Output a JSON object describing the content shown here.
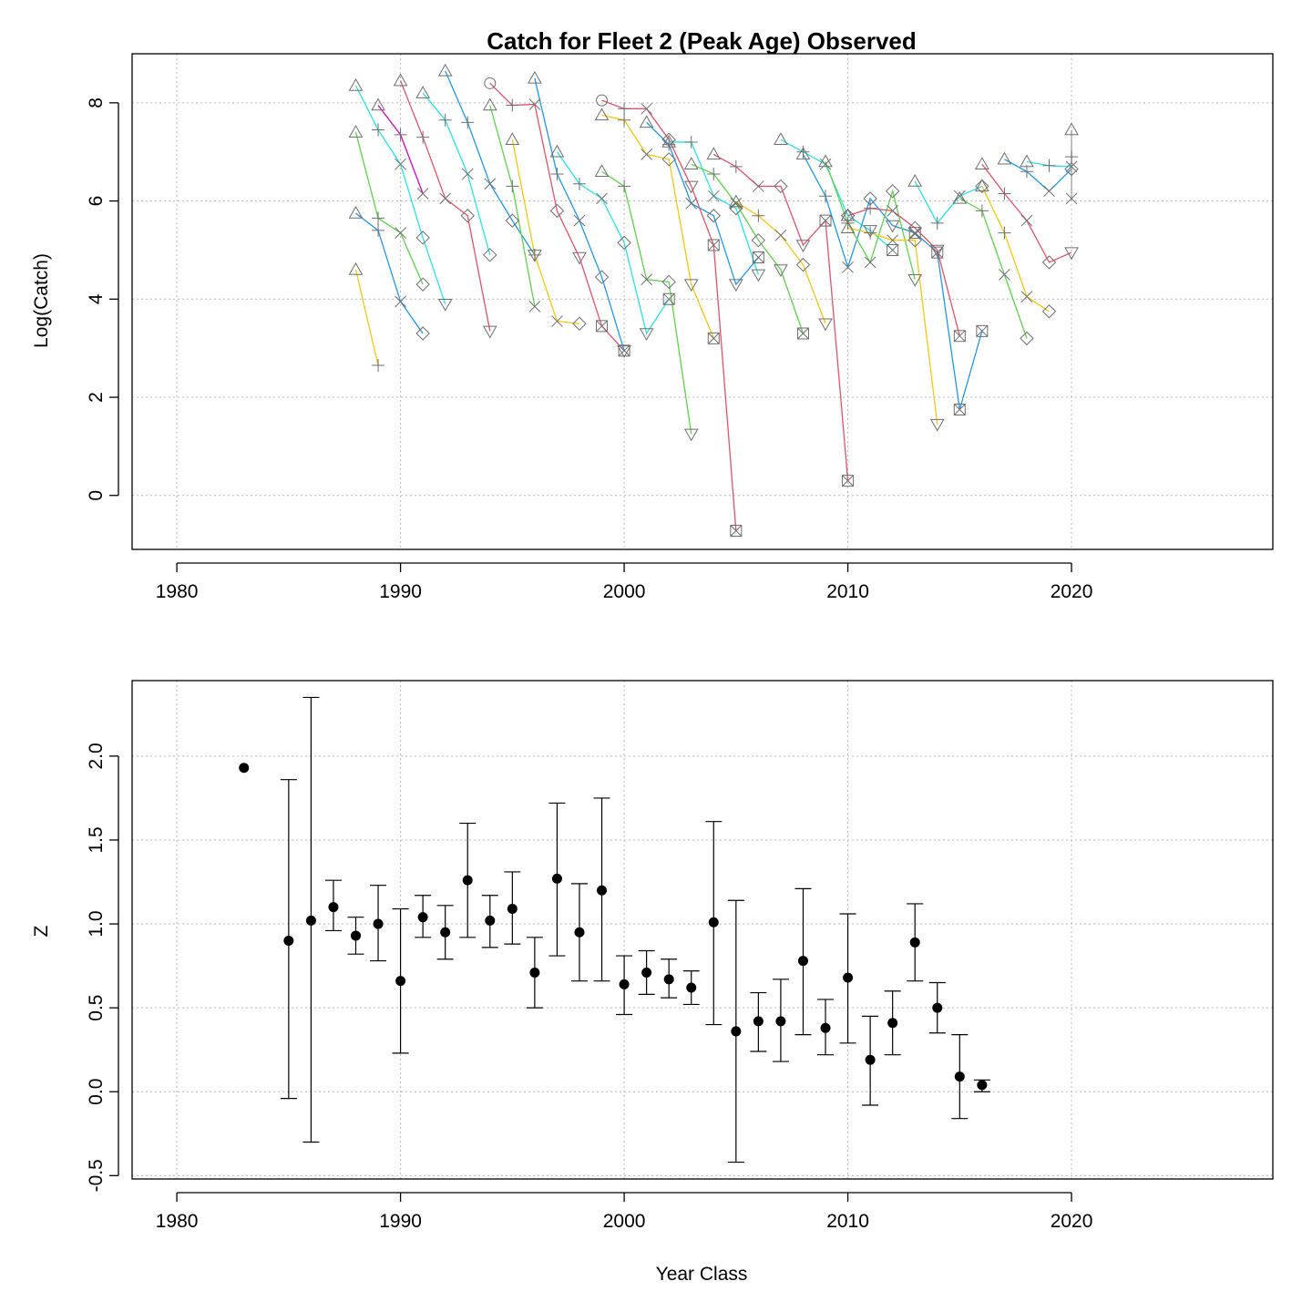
{
  "chart_data": [
    {
      "type": "line",
      "title": "Catch for Fleet 2 (Peak Age) Observed",
      "xlabel": "",
      "ylabel": "Log(Catch)",
      "xlim": [
        1978,
        2029
      ],
      "ylim": [
        -1.1,
        9.0
      ],
      "xticks": [
        1980,
        1990,
        2000,
        2010,
        2020
      ],
      "yticks": [
        0,
        2,
        4,
        6,
        8
      ],
      "grid": true,
      "age_markers": [
        "triangle",
        "plus",
        "x",
        "diamond",
        "triangle-down",
        "boxed-x"
      ],
      "series": [
        {
          "color": "#DF536B",
          "values": [
            [
              1994,
              8.4
            ],
            [
              1995,
              7.95
            ],
            [
              1996,
              7.97
            ],
            [
              1997,
              5.8
            ],
            [
              1998,
              4.85
            ],
            [
              1999,
              3.45
            ],
            [
              2000,
              2.95
            ]
          ]
        },
        {
          "color": "#DF536B",
          "values": [
            [
              1999,
              8.05
            ],
            [
              2000,
              7.88
            ],
            [
              2001,
              7.88
            ],
            [
              2002,
              7.25
            ],
            [
              2003,
              6.3
            ],
            [
              2004,
              5.1
            ],
            [
              2005,
              -0.72
            ]
          ]
        },
        {
          "color": "#28E2E5",
          "values": [
            [
              1988,
              8.35
            ],
            [
              1989,
              7.45
            ],
            [
              1990,
              6.75
            ],
            [
              1991,
              5.25
            ],
            [
              1992,
              3.9
            ]
          ]
        },
        {
          "color": "#61D04F",
          "values": [
            [
              1988,
              7.4
            ],
            [
              1989,
              5.65
            ],
            [
              1990,
              5.35
            ],
            [
              1991,
              4.3
            ]
          ]
        },
        {
          "color": "#2297E6",
          "values": [
            [
              1988,
              5.75
            ],
            [
              1989,
              5.4
            ],
            [
              1990,
              3.95
            ],
            [
              1991,
              3.3
            ]
          ]
        },
        {
          "color": "#F5C710",
          "values": [
            [
              1988,
              4.6
            ],
            [
              1989,
              2.65
            ]
          ]
        },
        {
          "color": "#DF536B",
          "values": [
            [
              1990,
              8.45
            ],
            [
              1991,
              7.3
            ],
            [
              1992,
              6.05
            ],
            [
              1993,
              5.7
            ],
            [
              1994,
              3.35
            ]
          ]
        },
        {
          "color": "#2297E6",
          "values": [
            [
              1992,
              8.65
            ],
            [
              1993,
              7.6
            ],
            [
              1994,
              6.35
            ],
            [
              1995,
              5.6
            ],
            [
              1996,
              4.9
            ]
          ]
        },
        {
          "color": "#28E2E5",
          "values": [
            [
              1991,
              8.2
            ],
            [
              1992,
              7.65
            ],
            [
              1993,
              6.55
            ],
            [
              1994,
              4.9
            ]
          ]
        },
        {
          "color": "#61D04F",
          "values": [
            [
              1994,
              7.95
            ],
            [
              1995,
              6.3
            ],
            [
              1996,
              3.85
            ]
          ]
        },
        {
          "color": "#CD0BBC",
          "values": [
            [
              1989,
              7.95
            ],
            [
              1990,
              7.35
            ],
            [
              1991,
              6.15
            ]
          ]
        },
        {
          "color": "#2297E6",
          "values": [
            [
              1996,
              8.5
            ],
            [
              1997,
              6.55
            ],
            [
              1998,
              5.6
            ],
            [
              1999,
              4.45
            ],
            [
              2000,
              2.95
            ]
          ]
        },
        {
          "color": "#28E2E5",
          "values": [
            [
              1997,
              7.0
            ],
            [
              1998,
              6.35
            ],
            [
              1999,
              6.05
            ],
            [
              2000,
              5.15
            ],
            [
              2001,
              3.3
            ],
            [
              2002,
              4.0
            ]
          ]
        },
        {
          "color": "#61D04F",
          "values": [
            [
              1999,
              6.6
            ],
            [
              2000,
              6.3
            ],
            [
              2001,
              4.4
            ],
            [
              2002,
              4.35
            ],
            [
              2003,
              1.25
            ]
          ]
        },
        {
          "color": "#F5C710",
          "values": [
            [
              1995,
              7.25
            ],
            [
              1996,
              4.9
            ],
            [
              1997,
              3.55
            ],
            [
              1998,
              3.5
            ]
          ]
        },
        {
          "color": "#F5C710",
          "values": [
            [
              1999,
              7.75
            ],
            [
              2000,
              7.65
            ],
            [
              2001,
              6.95
            ],
            [
              2002,
              6.85
            ],
            [
              2003,
              4.3
            ],
            [
              2004,
              3.2
            ]
          ]
        },
        {
          "color": "#2297E6",
          "values": [
            [
              2001,
              7.6
            ],
            [
              2002,
              7.15
            ],
            [
              2003,
              5.95
            ],
            [
              2004,
              5.7
            ],
            [
              2005,
              4.3
            ],
            [
              2006,
              4.85
            ]
          ]
        },
        {
          "color": "#28E2E5",
          "values": [
            [
              2002,
              7.2
            ],
            [
              2003,
              7.2
            ],
            [
              2004,
              6.1
            ],
            [
              2005,
              5.85
            ],
            [
              2006,
              4.5
            ]
          ]
        },
        {
          "color": "#61D04F",
          "values": [
            [
              2003,
              6.75
            ],
            [
              2004,
              6.55
            ],
            [
              2005,
              5.95
            ],
            [
              2006,
              5.2
            ],
            [
              2007,
              4.6
            ],
            [
              2008,
              3.3
            ]
          ]
        },
        {
          "color": "#DF536B",
          "values": [
            [
              2004,
              6.95
            ],
            [
              2005,
              6.7
            ],
            [
              2006,
              6.3
            ],
            [
              2007,
              6.3
            ],
            [
              2008,
              5.1
            ],
            [
              2009,
              5.6
            ],
            [
              2010,
              0.3
            ]
          ]
        },
        {
          "color": "#F5C710",
          "values": [
            [
              2005,
              5.98
            ],
            [
              2006,
              5.7
            ],
            [
              2007,
              5.3
            ],
            [
              2008,
              4.7
            ],
            [
              2009,
              3.5
            ]
          ]
        },
        {
          "color": "#28E2E5",
          "values": [
            [
              2007,
              7.25
            ],
            [
              2008,
              7.0
            ],
            [
              2009,
              6.75
            ],
            [
              2010,
              5.7
            ],
            [
              2011,
              5.4
            ],
            [
              2012,
              5.0
            ]
          ]
        },
        {
          "color": "#2297E6",
          "values": [
            [
              2008,
              6.95
            ],
            [
              2009,
              6.1
            ],
            [
              2010,
              4.65
            ],
            [
              2011,
              6.05
            ],
            [
              2012,
              5.5
            ],
            [
              2013,
              5.35
            ],
            [
              2014,
              4.95
            ],
            [
              2015,
              1.75
            ],
            [
              2016,
              3.35
            ]
          ]
        },
        {
          "color": "#61D04F",
          "values": [
            [
              2009,
              6.8
            ],
            [
              2010,
              5.55
            ],
            [
              2011,
              4.75
            ],
            [
              2012,
              6.2
            ],
            [
              2013,
              4.4
            ]
          ]
        },
        {
          "color": "#DF536B",
          "values": [
            [
              2010,
              5.7
            ],
            [
              2011,
              5.85
            ],
            [
              2012,
              5.8
            ],
            [
              2013,
              5.45
            ],
            [
              2014,
              5.0
            ],
            [
              2015,
              3.25
            ]
          ]
        },
        {
          "color": "#F5C710",
          "values": [
            [
              2010,
              5.45
            ],
            [
              2011,
              5.35
            ],
            [
              2012,
              5.2
            ],
            [
              2013,
              5.2
            ],
            [
              2014,
              1.45
            ]
          ]
        },
        {
          "color": "#28E2E5",
          "values": [
            [
              2013,
              6.4
            ],
            [
              2014,
              5.55
            ],
            [
              2015,
              6.1
            ],
            [
              2016,
              6.3
            ]
          ]
        },
        {
          "color": "#61D04F",
          "values": [
            [
              2015,
              6.05
            ],
            [
              2016,
              5.8
            ],
            [
              2017,
              4.5
            ],
            [
              2018,
              3.2
            ]
          ]
        },
        {
          "color": "#DF536B",
          "values": [
            [
              2016,
              6.75
            ],
            [
              2017,
              6.15
            ],
            [
              2018,
              5.6
            ],
            [
              2019,
              4.75
            ],
            [
              2020,
              4.95
            ]
          ]
        },
        {
          "color": "#F5C710",
          "values": [
            [
              2016,
              6.3
            ],
            [
              2017,
              5.35
            ],
            [
              2018,
              4.05
            ],
            [
              2019,
              3.75
            ]
          ]
        },
        {
          "color": "#2297E6",
          "values": [
            [
              2017,
              6.85
            ],
            [
              2018,
              6.6
            ],
            [
              2019,
              6.2
            ],
            [
              2020,
              6.65
            ]
          ]
        },
        {
          "color": "#28E2E5",
          "values": [
            [
              2018,
              6.8
            ],
            [
              2019,
              6.72
            ],
            [
              2020,
              6.7
            ]
          ]
        },
        {
          "color": "#9E9E9E",
          "values": [
            [
              2020,
              7.45
            ],
            [
              2020,
              6.9
            ],
            [
              2020,
              6.05
            ]
          ]
        }
      ]
    },
    {
      "type": "scatter",
      "title": "",
      "xlabel": "Year Class",
      "ylabel": "Z",
      "xlim": [
        1978,
        2029
      ],
      "ylim": [
        -0.52,
        2.45
      ],
      "xticks": [
        1980,
        1990,
        2000,
        2010,
        2020
      ],
      "yticks": [
        -0.5,
        0.0,
        0.5,
        1.0,
        1.5,
        2.0
      ],
      "ytick_labels": [
        "-0.5",
        "0.0",
        "0.5",
        "1.0",
        "1.5",
        "2.0"
      ],
      "grid": true,
      "error_bars": true,
      "points": [
        {
          "x": 1983,
          "y": 1.93
        },
        {
          "x": 1985,
          "y": 0.9,
          "lo": -0.04,
          "hi": 1.86
        },
        {
          "x": 1986,
          "y": 1.02,
          "lo": -0.3,
          "hi": 2.35
        },
        {
          "x": 1987,
          "y": 1.1,
          "lo": 0.96,
          "hi": 1.26
        },
        {
          "x": 1988,
          "y": 0.93,
          "lo": 0.82,
          "hi": 1.04
        },
        {
          "x": 1989,
          "y": 1.0,
          "lo": 0.78,
          "hi": 1.23
        },
        {
          "x": 1990,
          "y": 0.66,
          "lo": 0.23,
          "hi": 1.09
        },
        {
          "x": 1991,
          "y": 1.04,
          "lo": 0.92,
          "hi": 1.17
        },
        {
          "x": 1992,
          "y": 0.95,
          "lo": 0.79,
          "hi": 1.11
        },
        {
          "x": 1993,
          "y": 1.26,
          "lo": 0.92,
          "hi": 1.6
        },
        {
          "x": 1994,
          "y": 1.02,
          "lo": 0.86,
          "hi": 1.17
        },
        {
          "x": 1995,
          "y": 1.09,
          "lo": 0.88,
          "hi": 1.31
        },
        {
          "x": 1996,
          "y": 0.71,
          "lo": 0.5,
          "hi": 0.92
        },
        {
          "x": 1997,
          "y": 1.27,
          "lo": 0.81,
          "hi": 1.72
        },
        {
          "x": 1998,
          "y": 0.95,
          "lo": 0.66,
          "hi": 1.24
        },
        {
          "x": 1999,
          "y": 1.2,
          "lo": 0.66,
          "hi": 1.75
        },
        {
          "x": 2000,
          "y": 0.64,
          "lo": 0.46,
          "hi": 0.81
        },
        {
          "x": 2001,
          "y": 0.71,
          "lo": 0.58,
          "hi": 0.84
        },
        {
          "x": 2002,
          "y": 0.67,
          "lo": 0.56,
          "hi": 0.79
        },
        {
          "x": 2003,
          "y": 0.62,
          "lo": 0.52,
          "hi": 0.72
        },
        {
          "x": 2004,
          "y": 1.01,
          "lo": 0.4,
          "hi": 1.61
        },
        {
          "x": 2005,
          "y": 0.36,
          "lo": -0.42,
          "hi": 1.14
        },
        {
          "x": 2006,
          "y": 0.42,
          "lo": 0.24,
          "hi": 0.59
        },
        {
          "x": 2007,
          "y": 0.42,
          "lo": 0.18,
          "hi": 0.67
        },
        {
          "x": 2008,
          "y": 0.78,
          "lo": 0.34,
          "hi": 1.21
        },
        {
          "x": 2009,
          "y": 0.38,
          "lo": 0.22,
          "hi": 0.55
        },
        {
          "x": 2010,
          "y": 0.68,
          "lo": 0.29,
          "hi": 1.06
        },
        {
          "x": 2011,
          "y": 0.19,
          "lo": -0.08,
          "hi": 0.45
        },
        {
          "x": 2012,
          "y": 0.41,
          "lo": 0.22,
          "hi": 0.6
        },
        {
          "x": 2013,
          "y": 0.89,
          "lo": 0.66,
          "hi": 1.12
        },
        {
          "x": 2014,
          "y": 0.5,
          "lo": 0.35,
          "hi": 0.65
        },
        {
          "x": 2015,
          "y": 0.09,
          "lo": -0.16,
          "hi": 0.34
        },
        {
          "x": 2016,
          "y": 0.04,
          "lo": 0.0,
          "hi": 0.07
        }
      ]
    }
  ]
}
